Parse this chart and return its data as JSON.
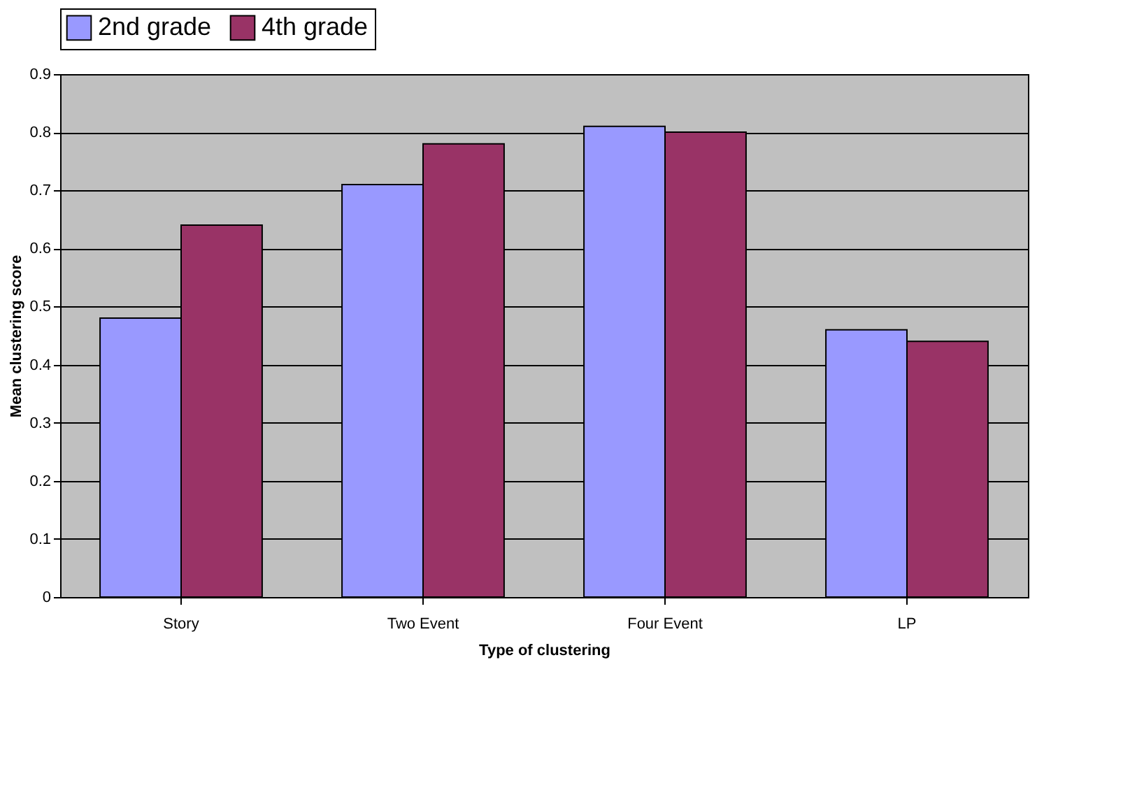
{
  "chart_data": {
    "type": "bar",
    "xlabel": "Type of clustering",
    "ylabel": "Mean clustering score",
    "categories": [
      "Story",
      "Two Event",
      "Four Event",
      "LP"
    ],
    "series": [
      {
        "name": "2nd grade",
        "color": "#9999ff",
        "values": [
          0.48,
          0.71,
          0.81,
          0.46
        ]
      },
      {
        "name": "4th grade",
        "color": "#993366",
        "values": [
          0.64,
          0.78,
          0.8,
          0.44
        ]
      }
    ],
    "ylim": [
      0,
      0.9
    ],
    "yticks": [
      0,
      0.1,
      0.2,
      0.3,
      0.4,
      0.5,
      0.6,
      0.7,
      0.8,
      0.9
    ],
    "grid": "y",
    "legend": "top"
  }
}
